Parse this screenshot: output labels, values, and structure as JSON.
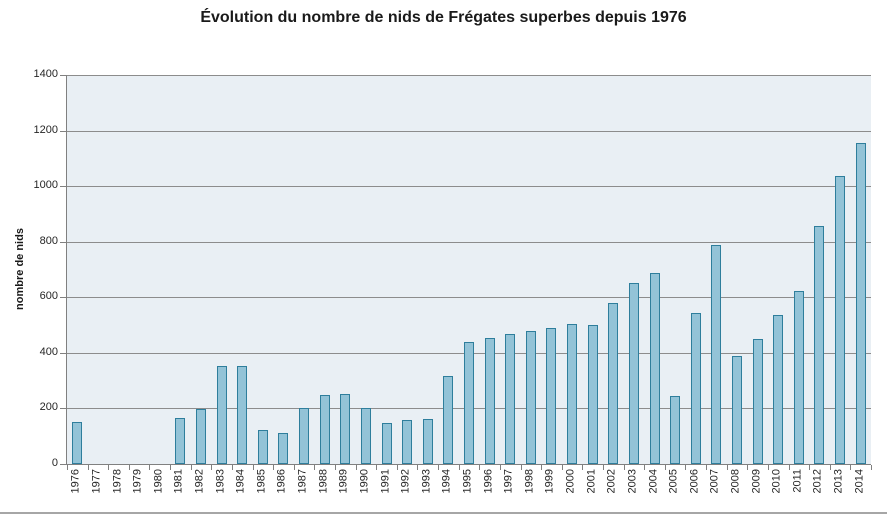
{
  "chart_data": {
    "type": "bar",
    "title": "Évolution du nombre de nids de Frégates superbes depuis 1976",
    "xlabel": "",
    "ylabel": "nombre de nids",
    "ylim": [
      0,
      1400
    ],
    "ytick_step": 200,
    "yticks": [
      0,
      200,
      400,
      600,
      800,
      1000,
      1200,
      1400
    ],
    "grid": "horizontal",
    "legend_position": "none",
    "categories": [
      "1976",
      "1977",
      "1978",
      "1979",
      "1980",
      "1981",
      "1982",
      "1983",
      "1984",
      "1985",
      "1986",
      "1987",
      "1988",
      "1989",
      "1990",
      "1991",
      "1992",
      "1993",
      "1994",
      "1995",
      "1996",
      "1997",
      "1998",
      "1999",
      "2000",
      "2001",
      "2002",
      "2003",
      "2004",
      "2005",
      "2006",
      "2007",
      "2008",
      "2009",
      "2010",
      "2011",
      "2012",
      "2013",
      "2014"
    ],
    "values": [
      150,
      0,
      0,
      0,
      0,
      165,
      198,
      352,
      352,
      122,
      112,
      202,
      250,
      252,
      200,
      149,
      157,
      162,
      318,
      440,
      455,
      467,
      477,
      490,
      503,
      500,
      578,
      650,
      688,
      243,
      545,
      788,
      390,
      450,
      535,
      621,
      856,
      1035,
      1156
    ],
    "colors": {
      "bar_fill": "#93C3D7",
      "bar_border": "#2E7E9C",
      "plot_background": "#E9EFF4",
      "gridline": "#8C8C8C",
      "axis_line": "#808080",
      "divider": "#A6A6A6",
      "text": "#1A1A1A"
    }
  }
}
